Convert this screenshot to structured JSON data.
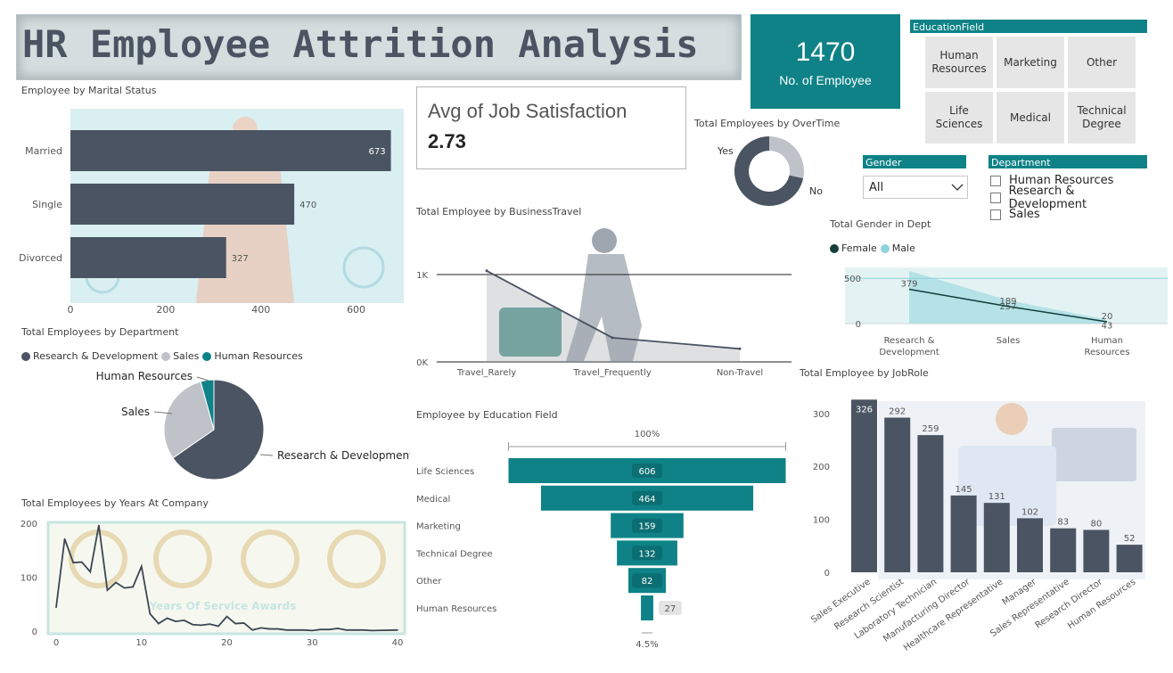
{
  "title": "HR Employee Attrition Analysis",
  "kpi": {
    "value": "1470",
    "label": "No. of Employee"
  },
  "job_satisfaction": {
    "title": "Avg of Job Satisfaction",
    "value": "2.73"
  },
  "education_slicer": {
    "header": "EducationField",
    "tiles": [
      {
        "line1": "Human",
        "line2": "Resources"
      },
      {
        "line1": "Marketing",
        "line2": ""
      },
      {
        "line1": "Other",
        "line2": ""
      },
      {
        "line1": "Life",
        "line2": "Sciences"
      },
      {
        "line1": "Medical",
        "line2": ""
      },
      {
        "line1": "Technical",
        "line2": "Degree"
      }
    ]
  },
  "gender_slicer": {
    "header": "Gender",
    "value": "All"
  },
  "department_slicer": {
    "header": "Department",
    "options": [
      "Human Resources",
      "Research & Development",
      "Sales"
    ]
  },
  "colors": {
    "accent": "#0e8287",
    "dark": "#4a5462",
    "light": "#bfc3c9",
    "male": "#8fd3dd",
    "female": "#133e3c"
  },
  "chart_data": [
    {
      "id": "marital",
      "type": "bar",
      "title": "Employee by Marital Status",
      "categories": [
        "Married",
        "Single",
        "Divorced"
      ],
      "values": [
        673,
        470,
        327
      ],
      "xticks": [
        0,
        200,
        400,
        600
      ],
      "xlim": [
        0,
        700
      ]
    },
    {
      "id": "overtime",
      "type": "pie",
      "title": "Total Employees by OverTime",
      "labels": [
        "Yes",
        "No"
      ],
      "values": [
        416,
        1054
      ]
    },
    {
      "id": "business_travel",
      "type": "line",
      "title": "Total Employee by BusinessTravel",
      "categories": [
        "Travel_Rarely",
        "Travel_Frequently",
        "Non-Travel"
      ],
      "values": [
        1043,
        277,
        150
      ],
      "yticks": [
        "1K",
        "0K"
      ],
      "ylim": [
        0,
        1000
      ]
    },
    {
      "id": "gender_dept",
      "type": "area",
      "title": "Total Gender in Dept",
      "legend": [
        "Female",
        "Male"
      ],
      "categories": [
        "Research & Development",
        "Sales",
        "Human Resources"
      ],
      "series": [
        {
          "name": "Female",
          "values": [
            379,
            189,
            20
          ]
        },
        {
          "name": "Male",
          "values": [
            582,
            257,
            43
          ]
        }
      ],
      "labels_female": [
        "379",
        "189",
        "20"
      ],
      "labels_male": [
        "",
        "257",
        "43"
      ],
      "yticks": [
        "500",
        "0"
      ],
      "ylim": [
        0,
        620
      ]
    },
    {
      "id": "department",
      "type": "pie",
      "title": "Total Employees by Department",
      "legend": [
        "Research & Development",
        "Sales",
        "Human Resources"
      ],
      "labels": [
        "Research & Development",
        "Sales",
        "Human Resources"
      ],
      "values": [
        961,
        446,
        63
      ]
    },
    {
      "id": "education",
      "type": "bar",
      "title": "Employee by Education Field",
      "categories": [
        "Life Sciences",
        "Medical",
        "Marketing",
        "Technical Degree",
        "Other",
        "Human Resources"
      ],
      "values": [
        606,
        464,
        159,
        132,
        82,
        27
      ],
      "top_label": "100%",
      "bottom_label": "4.5%"
    },
    {
      "id": "jobrole",
      "type": "bar",
      "title": "Total Employee by JobRole",
      "categories": [
        "Sales Executive",
        "Research Scientist",
        "Laboratory Technician",
        "Manufacturing Director",
        "Healthcare Representative",
        "Manager",
        "Sales Representative",
        "Research Director",
        "Human Resources"
      ],
      "values": [
        326,
        292,
        259,
        145,
        131,
        102,
        83,
        80,
        52
      ],
      "yticks": [
        0,
        100,
        200,
        300
      ],
      "ylim": [
        0,
        340
      ]
    },
    {
      "id": "years",
      "type": "line",
      "title": "Total Employees by Years At Company",
      "x": [
        0,
        1,
        2,
        3,
        4,
        5,
        6,
        7,
        8,
        9,
        10,
        11,
        12,
        13,
        14,
        15,
        16,
        17,
        18,
        19,
        20,
        21,
        22,
        23,
        24,
        25,
        26,
        27,
        29,
        30,
        31,
        32,
        33,
        34,
        36,
        37,
        40
      ],
      "values": [
        44,
        171,
        127,
        128,
        110,
        196,
        76,
        90,
        80,
        82,
        120,
        32,
        14,
        24,
        18,
        20,
        12,
        11,
        13,
        9,
        27,
        14,
        15,
        2,
        6,
        4,
        4,
        2,
        2,
        1,
        3,
        3,
        5,
        2,
        2,
        1,
        2
      ],
      "xticks": [
        0,
        10,
        20,
        30,
        40
      ],
      "yticks": [
        0,
        100,
        200
      ],
      "xlim": [
        0,
        41
      ],
      "ylim": [
        0,
        200
      ],
      "background_text": "Years Of Service Awards"
    }
  ]
}
